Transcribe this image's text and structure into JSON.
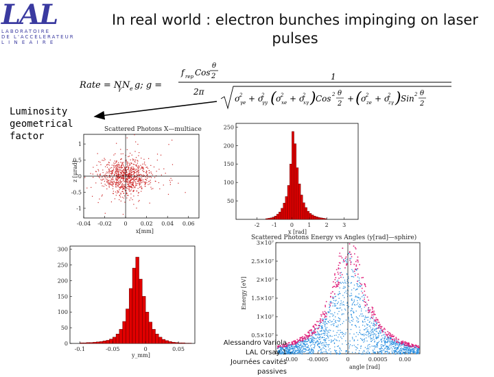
{
  "logo": {
    "letters": "LAL",
    "line1": "LABORATOIRE",
    "line2": "DE L'ACCELERATEUR",
    "line3": "L I N E A I R E"
  },
  "title": {
    "line1": "In real world : electron bunches impinging on laser",
    "line2": "pulses"
  },
  "luminosity_label": [
    "Luminosity",
    "geometrical",
    "factor"
  ],
  "formula": {
    "rate": "Rate = N",
    "g_def": "g;   g =",
    "numerator_left": "f",
    "numerator_sub": "rep",
    "numerator_cos": "Cos",
    "theta": "θ",
    "two": "2",
    "two_pi": "2π",
    "one": "1"
  },
  "credit": {
    "line1": "Alessandro Variola",
    "line2": "LAL Orsay 1",
    "line3": "Journées cavités passives"
  },
  "colors": {
    "bar_fill": "#e00000",
    "scatter_red": "#cc2222",
    "scatter_blue": "#2a8fe0",
    "scatter_magenta": "#e0207a",
    "logo_blue": "#3a3aa0"
  },
  "chart_data": [
    {
      "type": "scatter",
      "title": "Scattered Photons X—multiace",
      "xlabel": "x[mm]",
      "ylabel": "z [μrad]",
      "xlim": [
        -0.04,
        0.07
      ],
      "ylim": [
        -1.3,
        1.3
      ],
      "xticks": [
        "-0.04",
        "-0.02",
        "0",
        "0.02",
        "0.04",
        "0.06"
      ],
      "xtick_values": [
        -0.04,
        -0.02,
        0,
        0.02,
        0.04,
        0.06
      ],
      "yticks": [
        "-1",
        "-0.5",
        "0",
        "0.5",
        "1"
      ],
      "ytick_values": [
        -1,
        -0.5,
        0,
        0.5,
        1
      ],
      "distribution": {
        "center_x": 0.0,
        "center_y": 0.0,
        "sigma_x": 0.011,
        "sigma_y": 0.25
      }
    },
    {
      "type": "bar",
      "title": "",
      "xlabel": "x [rad]",
      "xlim": [
        -3.2,
        3.8
      ],
      "ylim": [
        0,
        260
      ],
      "xticks": [
        "-2",
        "-1",
        "0",
        "1",
        "2",
        "3"
      ],
      "xtick_values": [
        -2,
        -1,
        0,
        1,
        2,
        3
      ],
      "yticks": [
        "50",
        "100",
        "150",
        "200",
        "250"
      ],
      "ytick_values": [
        50,
        100,
        150,
        200,
        250
      ],
      "bin_start": -1.5,
      "bin_width": 0.125,
      "values": [
        2,
        3,
        4,
        6,
        9,
        14,
        20,
        30,
        44,
        62,
        92,
        150,
        238,
        205,
        140,
        96,
        66,
        45,
        32,
        22,
        16,
        12,
        9,
        7,
        5,
        4,
        3,
        2
      ]
    },
    {
      "type": "bar",
      "title": "",
      "xlabel": "y_mm]",
      "xlim": [
        -0.115,
        0.075
      ],
      "ylim": [
        0,
        310
      ],
      "xticks": [
        "-0.1",
        "-0.05",
        "0",
        "0.05"
      ],
      "xtick_values": [
        -0.1,
        -0.05,
        0,
        0.05
      ],
      "yticks": [
        "0",
        "50",
        "100",
        "150",
        "200",
        "250",
        "300"
      ],
      "ytick_values": [
        0,
        50,
        100,
        150,
        200,
        250,
        300
      ],
      "bin_start": -0.1,
      "bin_width": 0.005,
      "values": [
        2,
        2,
        3,
        3,
        4,
        5,
        6,
        8,
        10,
        14,
        20,
        30,
        45,
        70,
        110,
        175,
        240,
        275,
        205,
        150,
        100,
        68,
        45,
        30,
        20,
        13,
        9,
        6,
        4,
        3,
        2,
        2,
        1,
        1
      ]
    },
    {
      "type": "scatter",
      "title": "Scattered Photons Energy vs Angles (y[rad]—sphire)",
      "xlabel": "angle [rad]",
      "ylabel": "Energy [eV]",
      "xlim": [
        -0.0012,
        0.0012
      ],
      "ylim": [
        0,
        3.0
      ],
      "xticks": [
        "-0.00",
        "-0.0005",
        "0",
        "0.0005",
        "0.00"
      ],
      "xtick_values": [
        -0.00095,
        -0.0005,
        0,
        0.0005,
        0.00095
      ],
      "yticks": [
        "0.5×10⁷",
        "1×10⁷",
        "1.5×10⁷",
        "2×10⁷",
        "2.5×10⁷",
        "3×10⁷"
      ],
      "ytick_values": [
        0.5,
        1.0,
        1.5,
        2.0,
        2.5,
        3.0
      ],
      "envelope": {
        "peak": 2.75,
        "half_width_rad": 0.00032
      }
    }
  ]
}
